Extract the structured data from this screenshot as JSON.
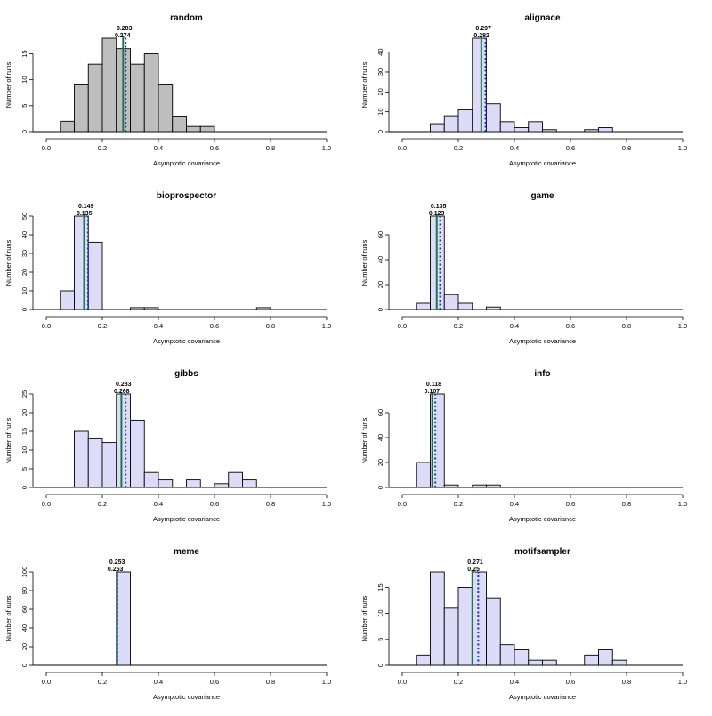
{
  "colors": {
    "random_fill": "#bebebe",
    "default_fill": "#dcdcf8",
    "stroke": "#000000",
    "median_line": "#1a7a46",
    "mean_line": "#1f2fb8"
  },
  "chart_data": [
    {
      "type": "bar",
      "title": "random",
      "xlabel": "Asymptotic covariance",
      "ylabel": "Number of runs",
      "xlim": [
        0,
        1
      ],
      "xticks": [
        "0.0",
        "0.2",
        "0.4",
        "0.6",
        "0.8",
        "1.0"
      ],
      "ylim": [
        0,
        18
      ],
      "yticks": [
        "0",
        "5",
        "10",
        "15"
      ],
      "bin_width": 0.05,
      "bins_start": [
        0.05,
        0.1,
        0.15,
        0.2,
        0.25,
        0.3,
        0.35,
        0.4,
        0.45,
        0.5,
        0.55
      ],
      "values": [
        2,
        9,
        13,
        18,
        16,
        13,
        15,
        9,
        3,
        1,
        1
      ],
      "fill": "random",
      "median": 0.274,
      "mean": 0.283,
      "median_label": "0.274",
      "mean_label": "0.283"
    },
    {
      "type": "bar",
      "title": "alignace",
      "xlabel": "Asymptotic covariance",
      "ylabel": "Number of runs",
      "xlim": [
        0,
        1
      ],
      "xticks": [
        "0.0",
        "0.2",
        "0.4",
        "0.6",
        "0.8",
        "1.0"
      ],
      "ylim": [
        0,
        47
      ],
      "yticks": [
        "0",
        "10",
        "20",
        "30",
        "40"
      ],
      "bin_width": 0.05,
      "bins_start": [
        0.1,
        0.15,
        0.2,
        0.25,
        0.3,
        0.35,
        0.4,
        0.45,
        0.5,
        0.55,
        0.6,
        0.65,
        0.7
      ],
      "values": [
        4,
        8,
        11,
        47,
        14,
        5,
        2,
        5,
        1,
        0,
        0,
        1,
        2
      ],
      "fill": "default",
      "median": 0.282,
      "mean": 0.297,
      "median_label": "0.282",
      "mean_label": "0.297"
    },
    {
      "type": "bar",
      "title": "bioprospector",
      "xlabel": "Asymptotic covariance",
      "ylabel": "Number of runs",
      "xlim": [
        0,
        1
      ],
      "xticks": [
        "0.0",
        "0.2",
        "0.4",
        "0.6",
        "0.8",
        "1.0"
      ],
      "ylim": [
        0,
        50
      ],
      "yticks": [
        "0",
        "10",
        "20",
        "30",
        "40",
        "50"
      ],
      "bin_width": 0.05,
      "bins_start": [
        0.05,
        0.1,
        0.15,
        0.2,
        0.25,
        0.3,
        0.35,
        0.4,
        0.45,
        0.5,
        0.55,
        0.6,
        0.65,
        0.7,
        0.75
      ],
      "values": [
        10,
        50,
        36,
        0,
        0,
        1,
        1,
        0,
        0,
        0,
        0,
        0,
        0,
        0,
        1
      ],
      "fill": "default",
      "median": 0.135,
      "mean": 0.149,
      "median_label": "0.135",
      "mean_label": "0.149"
    },
    {
      "type": "bar",
      "title": "game",
      "xlabel": "Asymptotic covariance",
      "ylabel": "Number of runs",
      "xlim": [
        0,
        1
      ],
      "xticks": [
        "0.0",
        "0.2",
        "0.4",
        "0.6",
        "0.8",
        "1.0"
      ],
      "ylim": [
        0,
        75
      ],
      "yticks": [
        "0",
        "20",
        "40",
        "60"
      ],
      "bin_width": 0.05,
      "bins_start": [
        0.05,
        0.1,
        0.15,
        0.2,
        0.25,
        0.3
      ],
      "values": [
        5,
        75,
        12,
        5,
        0,
        2
      ],
      "fill": "default",
      "median": 0.123,
      "mean": 0.135,
      "median_label": "0.123",
      "mean_label": "0.135"
    },
    {
      "type": "bar",
      "title": "gibbs",
      "xlabel": "Asymptotic covariance",
      "ylabel": "Number of runs",
      "xlim": [
        0,
        1
      ],
      "xticks": [
        "0.0",
        "0.2",
        "0.4",
        "0.6",
        "0.8",
        "1.0"
      ],
      "ylim": [
        0,
        25
      ],
      "yticks": [
        "0",
        "5",
        "10",
        "15",
        "20",
        "25"
      ],
      "bin_width": 0.05,
      "bins_start": [
        0.1,
        0.15,
        0.2,
        0.25,
        0.3,
        0.35,
        0.4,
        0.45,
        0.5,
        0.55,
        0.6,
        0.65,
        0.7
      ],
      "values": [
        15,
        13,
        12,
        25,
        18,
        4,
        2,
        0,
        2,
        0,
        1,
        4,
        2
      ],
      "fill": "default",
      "median": 0.268,
      "mean": 0.283,
      "median_label": "0.268",
      "mean_label": "0.283"
    },
    {
      "type": "bar",
      "title": "info",
      "xlabel": "Asymptotic covariance",
      "ylabel": "Number of runs",
      "xlim": [
        0,
        1
      ],
      "xticks": [
        "0.0",
        "0.2",
        "0.4",
        "0.6",
        "0.8",
        "1.0"
      ],
      "ylim": [
        0,
        75
      ],
      "yticks": [
        "0",
        "20",
        "40",
        "60"
      ],
      "bin_width": 0.05,
      "bins_start": [
        0.05,
        0.1,
        0.15,
        0.2,
        0.25,
        0.3
      ],
      "values": [
        20,
        75,
        2,
        0,
        2,
        2
      ],
      "fill": "default",
      "median": 0.107,
      "mean": 0.118,
      "median_label": "0.107",
      "mean_label": "0.118"
    },
    {
      "type": "bar",
      "title": "meme",
      "xlabel": "Asymptotic covariance",
      "ylabel": "Number of runs",
      "xlim": [
        0,
        1
      ],
      "xticks": [
        "0.0",
        "0.2",
        "0.4",
        "0.6",
        "0.8",
        "1.0"
      ],
      "ylim": [
        0,
        100
      ],
      "yticks": [
        "0",
        "20",
        "40",
        "60",
        "80",
        "100"
      ],
      "bin_width": 0.05,
      "bins_start": [
        0.25
      ],
      "values": [
        100
      ],
      "fill": "default",
      "median": 0.253,
      "mean": 0.253,
      "median_label": "0.253",
      "mean_label": "0.253"
    },
    {
      "type": "bar",
      "title": "motifsampler",
      "xlabel": "Asymptotic covariance",
      "ylabel": "Number of runs",
      "xlim": [
        0,
        1
      ],
      "xticks": [
        "0.0",
        "0.2",
        "0.4",
        "0.6",
        "0.8",
        "1.0"
      ],
      "ylim": [
        0,
        18
      ],
      "yticks": [
        "0",
        "5",
        "10",
        "15"
      ],
      "bin_width": 0.05,
      "bins_start": [
        0.05,
        0.1,
        0.15,
        0.2,
        0.25,
        0.3,
        0.35,
        0.4,
        0.45,
        0.5,
        0.55,
        0.6,
        0.65,
        0.7,
        0.75
      ],
      "values": [
        2,
        18,
        11,
        15,
        18,
        13,
        4,
        3,
        1,
        1,
        0,
        0,
        2,
        3,
        1
      ],
      "fill": "default",
      "median": 0.25,
      "mean": 0.271,
      "median_label": "0.25",
      "mean_label": "0.271"
    }
  ]
}
